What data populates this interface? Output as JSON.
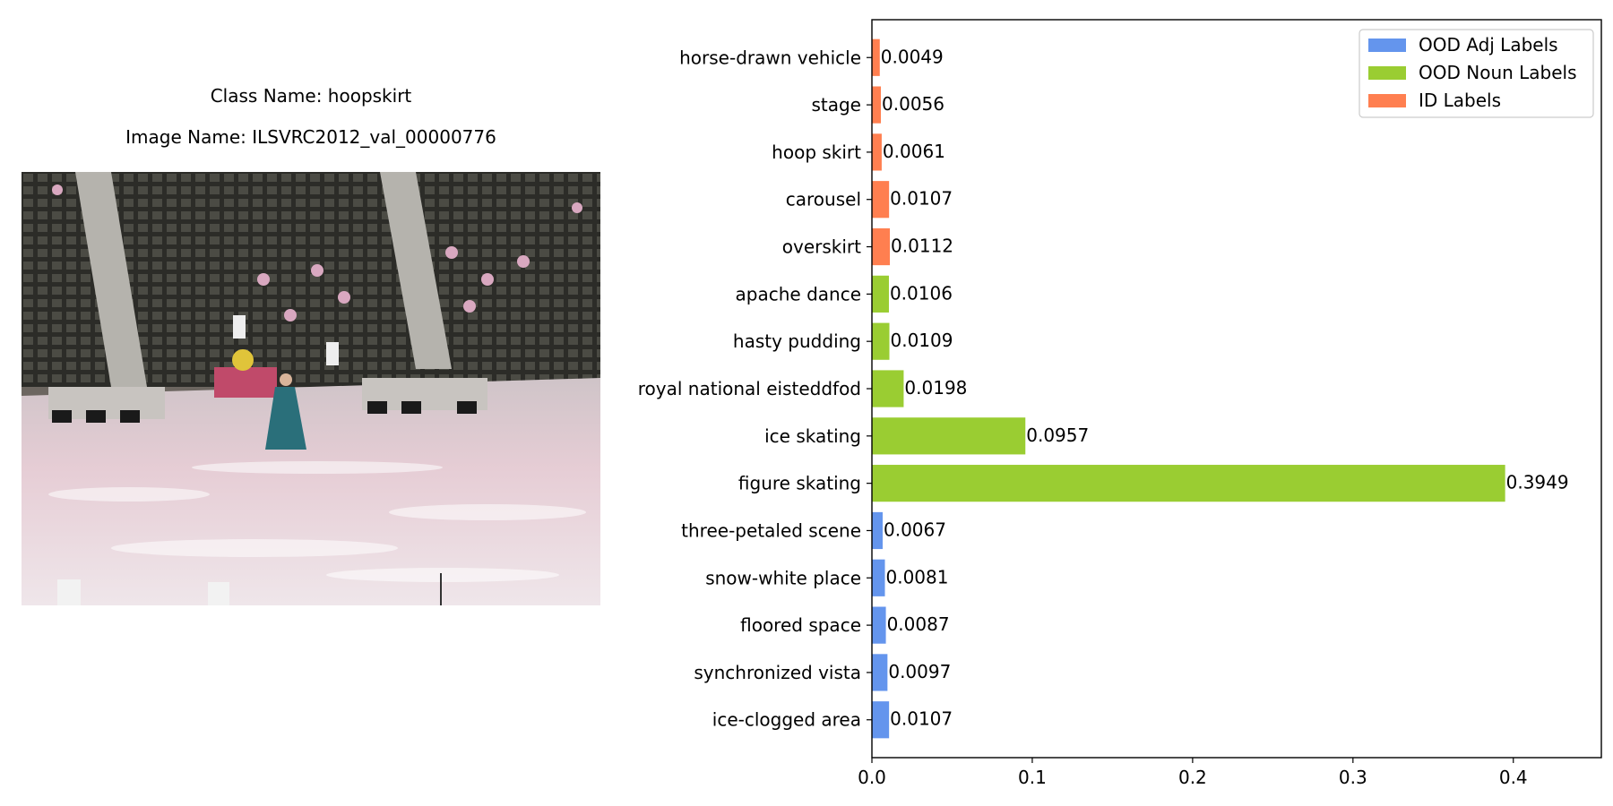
{
  "left_panel": {
    "class_caption": "Class Name: hoopskirt",
    "image_caption": "Image Name: ILSVRC2012_val_00000776"
  },
  "colors": {
    "adj": "#6495ED",
    "noun": "#9ACD32",
    "id": "#FF7F50"
  },
  "chart_data": {
    "type": "bar",
    "orientation": "horizontal",
    "title": "",
    "xlabel": "",
    "ylabel": "",
    "xlim": [
      0,
      0.4549
    ],
    "xticks": [
      0.0,
      0.1,
      0.2,
      0.3,
      0.4
    ],
    "grid": false,
    "legend_position": "top-right",
    "legend": [
      {
        "name": "OOD Adj Labels",
        "group": "adj"
      },
      {
        "name": "OOD Noun Labels",
        "group": "noun"
      },
      {
        "name": "ID Labels",
        "group": "id"
      }
    ],
    "bars": [
      {
        "category": "ice-clogged area",
        "value": 0.0107,
        "label": "0.0107",
        "group": "adj"
      },
      {
        "category": "synchronized vista",
        "value": 0.0097,
        "label": "0.0097",
        "group": "adj"
      },
      {
        "category": "floored space",
        "value": 0.0087,
        "label": "0.0087",
        "group": "adj"
      },
      {
        "category": "snow-white place",
        "value": 0.0081,
        "label": "0.0081",
        "group": "adj"
      },
      {
        "category": "three-petaled scene",
        "value": 0.0067,
        "label": "0.0067",
        "group": "adj"
      },
      {
        "category": "figure skating",
        "value": 0.3949,
        "label": "0.3949",
        "group": "noun"
      },
      {
        "category": "ice skating",
        "value": 0.0957,
        "label": "0.0957",
        "group": "noun"
      },
      {
        "category": "royal national eisteddfod",
        "value": 0.0198,
        "label": "0.0198",
        "group": "noun"
      },
      {
        "category": "hasty pudding",
        "value": 0.0109,
        "label": "0.0109",
        "group": "noun"
      },
      {
        "category": "apache dance",
        "value": 0.0106,
        "label": "0.0106",
        "group": "noun"
      },
      {
        "category": "overskirt",
        "value": 0.0112,
        "label": "0.0112",
        "group": "id"
      },
      {
        "category": "carousel",
        "value": 0.0107,
        "label": "0.0107",
        "group": "id"
      },
      {
        "category": "hoop skirt",
        "value": 0.0061,
        "label": "0.0061",
        "group": "id"
      },
      {
        "category": "stage",
        "value": 0.0056,
        "label": "0.0056",
        "group": "id"
      },
      {
        "category": "horse-drawn vehicle",
        "value": 0.0049,
        "label": "0.0049",
        "group": "id"
      }
    ]
  }
}
